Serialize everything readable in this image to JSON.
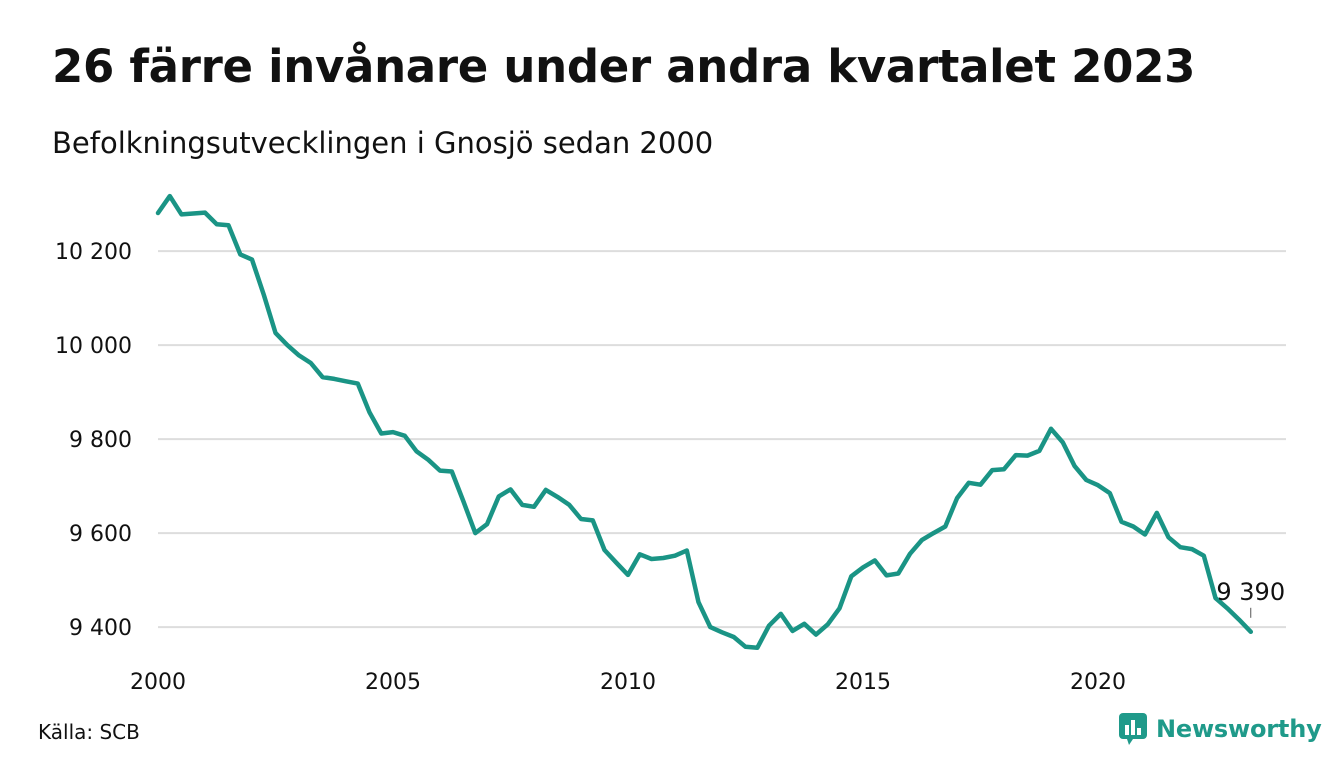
{
  "header": {
    "title": "26 färre invånare under andra kvartalet 2023",
    "subtitle": "Befolkningsutvecklingen i Gnosjö sedan 2000"
  },
  "footer": {
    "source": "Källa: SCB",
    "brand": "Newsworthy",
    "brand_icon": "chart-bubble-icon",
    "brand_color": "#1f9a8a"
  },
  "chart_data": {
    "type": "line",
    "series_color": "#1a9485",
    "grid": true,
    "xlim": [
      2000,
      2024
    ],
    "ylim": [
      9330,
      10330
    ],
    "yticks": [
      9400,
      9600,
      9800,
      10000,
      10200
    ],
    "ytick_labels": [
      "9 400",
      "9 600",
      "9 800",
      "10 000",
      "10 200"
    ],
    "xticks": [
      2000,
      2005,
      2010,
      2015,
      2020
    ],
    "xtick_labels": [
      "2000",
      "2005",
      "2010",
      "2015",
      "2020"
    ],
    "end_label": "9 390",
    "x": [
      2000.0,
      2000.25,
      2000.5,
      2000.75,
      2001.0,
      2001.25,
      2001.5,
      2001.75,
      2002.0,
      2002.25,
      2002.5,
      2002.75,
      2003.0,
      2003.25,
      2003.5,
      2003.75,
      2004.0,
      2004.25,
      2004.5,
      2004.75,
      2005.0,
      2005.25,
      2005.5,
      2005.75,
      2006.0,
      2006.25,
      2006.5,
      2006.75,
      2007.0,
      2007.25,
      2007.5,
      2007.75,
      2008.0,
      2008.25,
      2008.5,
      2008.75,
      2009.0,
      2009.25,
      2009.5,
      2009.75,
      2010.0,
      2010.25,
      2010.5,
      2010.75,
      2011.0,
      2011.25,
      2011.5,
      2011.75,
      2012.0,
      2012.25,
      2012.5,
      2012.75,
      2013.0,
      2013.25,
      2013.5,
      2013.75,
      2014.0,
      2014.25,
      2014.5,
      2014.75,
      2015.0,
      2015.25,
      2015.5,
      2015.75,
      2016.0,
      2016.25,
      2016.5,
      2016.75,
      2017.0,
      2017.25,
      2017.5,
      2017.75,
      2018.0,
      2018.25,
      2018.5,
      2018.75,
      2019.0,
      2019.25,
      2019.5,
      2019.75,
      2020.0,
      2020.25,
      2020.5,
      2020.75,
      2021.0,
      2021.25,
      2021.5,
      2021.75,
      2022.0,
      2022.25,
      2022.5,
      2022.75,
      2023.0,
      2023.25
    ],
    "values": [
      10281,
      10317,
      10278,
      10280,
      10282,
      10257,
      10255,
      10193,
      10182,
      10107,
      10026,
      10000,
      9978,
      9962,
      9932,
      9928,
      9923,
      9918,
      9857,
      9812,
      9815,
      9807,
      9774,
      9756,
      9733,
      9731,
      9667,
      9600,
      9619,
      9678,
      9693,
      9660,
      9656,
      9692,
      9677,
      9660,
      9630,
      9627,
      9564,
      9537,
      9511,
      9555,
      9545,
      9547,
      9552,
      9563,
      9453,
      9400,
      9389,
      9379,
      9358,
      9356,
      9403,
      9428,
      9392,
      9407,
      9384,
      9406,
      9440,
      9508,
      9527,
      9542,
      9510,
      9514,
      9556,
      9585,
      9600,
      9614,
      9674,
      9707,
      9703,
      9734,
      9736,
      9766,
      9765,
      9775,
      9822,
      9793,
      9743,
      9713,
      9702,
      9685,
      9624,
      9614,
      9597,
      9643,
      9591,
      9570,
      9566,
      9552,
      9462,
      9440,
      9416,
      9390
    ]
  }
}
